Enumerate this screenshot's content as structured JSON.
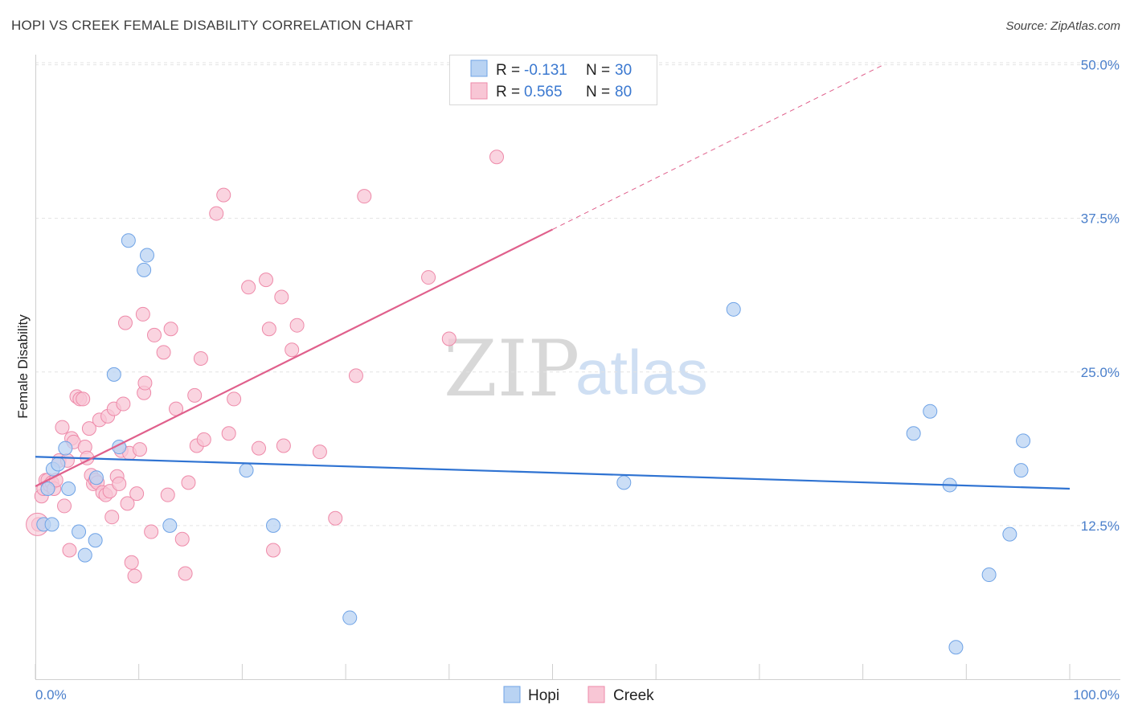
{
  "header": {
    "title": "HOPI VS CREEK FEMALE DISABILITY CORRELATION CHART",
    "source": "Source: ZipAtlas.com"
  },
  "watermark": {
    "zip": "ZIP",
    "atlas": "atlas"
  },
  "legend": {
    "rows": [
      {
        "r_label": "R =",
        "r_value": "-0.131",
        "n_label": "N =",
        "n_value": "30",
        "color": "#a9c8f0"
      },
      {
        "r_label": "R =",
        "r_value": "0.565",
        "n_label": "N =",
        "n_value": "80",
        "color": "#f5b8cb"
      }
    ]
  },
  "chart_data": {
    "type": "scatter",
    "title": "HOPI VS CREEK FEMALE DISABILITY CORRELATION CHART",
    "xlabel": "",
    "ylabel": "Female Disability",
    "xlim": [
      0,
      100
    ],
    "ylim": [
      0,
      52
    ],
    "x_tick_labels": [
      "0.0%",
      "100.0%"
    ],
    "y_ticks": [
      12.5,
      25.0,
      37.5,
      50.0
    ],
    "y_tick_labels": [
      "12.5%",
      "25.0%",
      "37.5%",
      "50.0%"
    ],
    "grid": true,
    "legend_position": "top-center",
    "series": [
      {
        "name": "Hopi",
        "color": "#6fa3e6",
        "fill": "#b9d3f3",
        "trend": {
          "x": [
            0,
            100
          ],
          "y": [
            18.1,
            15.5
          ],
          "color": "#2f73d2"
        },
        "points": [
          [
            0.8,
            12.6
          ],
          [
            1.2,
            15.5
          ],
          [
            1.6,
            12.6
          ],
          [
            1.7,
            17.1
          ],
          [
            2.2,
            17.5
          ],
          [
            2.9,
            18.8
          ],
          [
            3.2,
            15.5
          ],
          [
            4.2,
            12.0
          ],
          [
            4.8,
            10.1
          ],
          [
            5.8,
            11.3
          ],
          [
            5.9,
            16.4
          ],
          [
            7.6,
            24.8
          ],
          [
            8.1,
            18.9
          ],
          [
            9.0,
            35.7
          ],
          [
            10.5,
            33.3
          ],
          [
            10.8,
            34.5
          ],
          [
            13.0,
            12.5
          ],
          [
            20.4,
            17.0
          ],
          [
            23.0,
            12.5
          ],
          [
            30.4,
            5.0
          ],
          [
            56.9,
            16.0
          ],
          [
            67.5,
            30.1
          ],
          [
            84.9,
            20.0
          ],
          [
            86.5,
            21.8
          ],
          [
            88.4,
            15.8
          ],
          [
            89.0,
            2.6
          ],
          [
            92.2,
            8.5
          ],
          [
            94.2,
            11.8
          ],
          [
            95.3,
            17.0
          ],
          [
            95.5,
            19.4
          ]
        ]
      },
      {
        "name": "Creek",
        "color": "#ee8aa9",
        "fill": "#f8c6d5",
        "trend": {
          "x": [
            0,
            50
          ],
          "y": [
            15.7,
            36.6
          ],
          "color": "#e0608c",
          "dash_extension": {
            "x": [
              50,
              82
            ],
            "y": [
              36.6,
              50.0
            ]
          }
        },
        "points": [
          [
            0.3,
            12.6
          ],
          [
            0.6,
            14.9
          ],
          [
            0.8,
            15.5
          ],
          [
            1.0,
            16.2
          ],
          [
            1.2,
            16.2
          ],
          [
            1.4,
            15.8
          ],
          [
            1.6,
            16.0
          ],
          [
            1.8,
            15.5
          ],
          [
            2.0,
            16.2
          ],
          [
            2.3,
            17.8
          ],
          [
            2.6,
            20.5
          ],
          [
            2.8,
            14.1
          ],
          [
            3.1,
            17.8
          ],
          [
            3.3,
            10.5
          ],
          [
            3.5,
            19.6
          ],
          [
            3.7,
            19.3
          ],
          [
            4.0,
            23.0
          ],
          [
            4.3,
            22.8
          ],
          [
            4.6,
            22.8
          ],
          [
            4.8,
            18.9
          ],
          [
            5.0,
            18.0
          ],
          [
            5.2,
            20.4
          ],
          [
            5.4,
            16.6
          ],
          [
            5.6,
            15.9
          ],
          [
            5.8,
            16.2
          ],
          [
            6.0,
            16.0
          ],
          [
            6.2,
            21.1
          ],
          [
            6.5,
            15.2
          ],
          [
            6.8,
            15.0
          ],
          [
            7.0,
            21.4
          ],
          [
            7.2,
            15.3
          ],
          [
            7.4,
            13.2
          ],
          [
            7.6,
            22.0
          ],
          [
            7.9,
            16.5
          ],
          [
            8.1,
            15.9
          ],
          [
            8.3,
            18.6
          ],
          [
            8.5,
            22.4
          ],
          [
            8.7,
            29.0
          ],
          [
            8.9,
            14.3
          ],
          [
            9.1,
            18.4
          ],
          [
            9.3,
            9.5
          ],
          [
            9.6,
            8.4
          ],
          [
            9.8,
            15.1
          ],
          [
            10.1,
            18.7
          ],
          [
            10.4,
            29.7
          ],
          [
            10.5,
            23.3
          ],
          [
            10.6,
            24.1
          ],
          [
            11.2,
            12.0
          ],
          [
            11.5,
            28.0
          ],
          [
            12.4,
            26.6
          ],
          [
            12.8,
            15.0
          ],
          [
            13.1,
            28.5
          ],
          [
            13.6,
            22.0
          ],
          [
            14.2,
            11.4
          ],
          [
            14.5,
            8.6
          ],
          [
            14.8,
            16.0
          ],
          [
            15.4,
            23.1
          ],
          [
            15.6,
            19.0
          ],
          [
            16.0,
            26.1
          ],
          [
            16.3,
            19.5
          ],
          [
            17.5,
            37.9
          ],
          [
            18.2,
            39.4
          ],
          [
            18.7,
            20.0
          ],
          [
            19.2,
            22.8
          ],
          [
            20.6,
            31.9
          ],
          [
            21.6,
            18.8
          ],
          [
            22.3,
            32.5
          ],
          [
            22.6,
            28.5
          ],
          [
            23.0,
            10.5
          ],
          [
            23.8,
            31.1
          ],
          [
            24.0,
            19.0
          ],
          [
            24.8,
            26.8
          ],
          [
            25.3,
            28.8
          ],
          [
            27.5,
            18.5
          ],
          [
            29.0,
            13.1
          ],
          [
            31.0,
            24.7
          ],
          [
            31.8,
            39.3
          ],
          [
            38.0,
            32.7
          ],
          [
            40.0,
            27.7
          ],
          [
            44.6,
            42.5
          ]
        ]
      }
    ]
  },
  "bottom_legend": [
    {
      "label": "Hopi",
      "color": "#b9d3f3",
      "border": "#6fa3e6"
    },
    {
      "label": "Creek",
      "color": "#f8c6d5",
      "border": "#ee8aa9"
    }
  ]
}
